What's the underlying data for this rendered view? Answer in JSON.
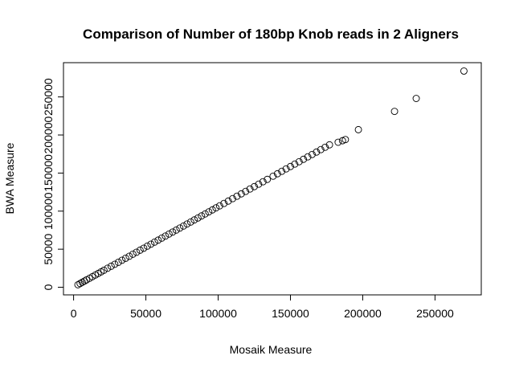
{
  "chart_data": {
    "type": "scatter",
    "title": "Comparison of Number of 180bp Knob reads in 2 Aligners",
    "xlabel": "Mosaik Measure",
    "ylabel": "BWA Measure",
    "xlim": [
      -7000,
      282000
    ],
    "ylim": [
      -10000,
      295000
    ],
    "xticks": [
      0,
      50000,
      100000,
      150000,
      200000,
      250000
    ],
    "yticks": [
      0,
      50000,
      100000,
      150000,
      200000,
      250000
    ],
    "xtick_labels": [
      "0",
      "50000",
      "100000",
      "150000",
      "200000",
      "250000"
    ],
    "ytick_labels": [
      "0",
      "50000",
      "100000",
      "150000",
      "200000",
      "250000"
    ],
    "grid": false,
    "legend": "none",
    "marker": "open-circle",
    "color": "#000000",
    "points": {
      "x": [
        3000,
        4500,
        6000,
        7500,
        9000,
        11000,
        13000,
        15000,
        17000,
        19000,
        21000,
        23500,
        26000,
        28500,
        31000,
        33500,
        36000,
        38500,
        41000,
        43500,
        46000,
        48500,
        51000,
        53500,
        56000,
        58500,
        61000,
        63500,
        66000,
        68500,
        71000,
        73500,
        76000,
        78500,
        81000,
        83500,
        86000,
        88500,
        91000,
        93500,
        96000,
        98500,
        101000,
        104000,
        107000,
        110000,
        113000,
        116000,
        119000,
        122000,
        125000,
        128000,
        131000,
        134000,
        138000,
        141000,
        144000,
        147000,
        150000,
        153000,
        156000,
        159000,
        162000,
        165000,
        168000,
        171000,
        174000,
        177000,
        183000,
        186000,
        188000,
        197000,
        222000,
        237000,
        270000
      ],
      "y": [
        3300,
        4900,
        6500,
        8100,
        9700,
        11800,
        13900,
        16000,
        18100,
        20200,
        22300,
        25000,
        27600,
        30200,
        32800,
        35500,
        38100,
        40700,
        43400,
        46000,
        48700,
        51300,
        54000,
        56600,
        59300,
        61900,
        64600,
        67200,
        69900,
        72500,
        75100,
        77800,
        80400,
        83100,
        85700,
        88400,
        91000,
        93700,
        96300,
        99000,
        101600,
        104300,
        106900,
        110100,
        113200,
        116400,
        119600,
        122700,
        125900,
        129100,
        132200,
        135400,
        138600,
        141700,
        145900,
        149100,
        152300,
        155500,
        158600,
        161800,
        164900,
        168100,
        171300,
        174400,
        177600,
        180800,
        183900,
        187100,
        190500,
        192500,
        194000,
        207000,
        231000,
        248000,
        284000
      ]
    }
  }
}
